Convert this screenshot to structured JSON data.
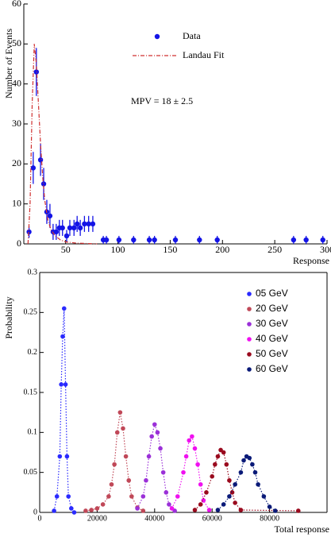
{
  "chart_data": [
    {
      "type": "scatter",
      "xlabel": "Response",
      "ylabel": "Number of Events",
      "xlim": [
        10,
        300
      ],
      "ylim": [
        0,
        60
      ],
      "xticks": [
        50,
        100,
        150,
        200,
        250,
        300
      ],
      "yticks": [
        0,
        10,
        20,
        30,
        40,
        50,
        60
      ],
      "legend": "upper right",
      "annotations": [
        "MPV   =   18 ± 2.5"
      ],
      "series": [
        {
          "name": "Data",
          "color": "#1414e6",
          "marker": "circle",
          "x": [
            15,
            19,
            22,
            26,
            29,
            32,
            35,
            38,
            41,
            44,
            47,
            51,
            54,
            58,
            61,
            64,
            68,
            72,
            76,
            86,
            89,
            101,
            115,
            130,
            135,
            155,
            178,
            195,
            268,
            280,
            296
          ],
          "values": [
            3,
            19,
            43,
            21,
            15,
            8,
            7,
            3,
            3,
            4,
            4,
            2,
            4,
            4,
            5,
            4,
            5,
            5,
            5,
            1,
            1,
            1,
            1,
            1,
            1,
            1,
            1,
            1,
            1,
            1,
            1
          ],
          "errors": [
            1.5,
            4,
            6,
            4,
            4,
            3,
            3,
            2,
            2,
            2,
            2,
            1.5,
            2,
            2,
            2,
            2,
            2,
            2,
            2,
            1,
            1,
            1,
            1,
            1,
            1,
            1,
            1,
            1,
            1,
            1,
            1
          ]
        },
        {
          "name": "Landau Fit",
          "color": "#d03030",
          "linestyle": "dashdot",
          "x": [
            14,
            16,
            18,
            20,
            22,
            24,
            26,
            28,
            30,
            33,
            36,
            40,
            45,
            50,
            60,
            80
          ],
          "values": [
            0,
            10,
            35,
            50,
            45,
            35,
            25,
            17,
            11,
            6,
            3.5,
            2,
            1,
            0.5,
            0.2,
            0
          ]
        }
      ]
    },
    {
      "type": "scatter",
      "xlabel": "Total response",
      "ylabel": "Probability",
      "xlim": [
        0,
        100000
      ],
      "ylim": [
        0,
        0.3
      ],
      "xticks": [
        0,
        20000,
        40000,
        60000,
        80000
      ],
      "yticks": [
        0,
        0.05,
        0.1,
        0.15,
        0.2,
        0.25,
        0.3
      ],
      "legend": "upper right",
      "series": [
        {
          "name": "05 GeV",
          "color": "#2a2aff",
          "marker": "circle",
          "linestyle": "dotted",
          "x": [
            5000,
            6000,
            7000,
            7500,
            8000,
            8500,
            9000,
            9500,
            10000,
            11000,
            12000
          ],
          "values": [
            0.002,
            0.02,
            0.07,
            0.16,
            0.22,
            0.255,
            0.16,
            0.07,
            0.02,
            0.005,
            0
          ]
        },
        {
          "name": "20 GeV",
          "color": "#c04858",
          "marker": "circle",
          "linestyle": "dotted",
          "x": [
            16000,
            18000,
            20000,
            22000,
            24000,
            25000,
            26000,
            27000,
            28000,
            29000,
            30000,
            31000,
            32000,
            34000,
            36000
          ],
          "values": [
            0.002,
            0.003,
            0.005,
            0.01,
            0.02,
            0.035,
            0.06,
            0.1,
            0.125,
            0.105,
            0.07,
            0.04,
            0.02,
            0.006,
            0.002
          ]
        },
        {
          "name": "30 GeV",
          "color": "#9b30d8",
          "marker": "circle",
          "linestyle": "dotted",
          "x": [
            34000,
            36000,
            37000,
            38000,
            39000,
            40000,
            41000,
            42000,
            43000,
            44000,
            45000,
            47000
          ],
          "values": [
            0.005,
            0.02,
            0.04,
            0.07,
            0.095,
            0.11,
            0.1,
            0.08,
            0.05,
            0.025,
            0.01,
            0.002
          ]
        },
        {
          "name": "40 GeV",
          "color": "#f010f0",
          "marker": "circle",
          "linestyle": "dotted",
          "x": [
            46000,
            48000,
            50000,
            51000,
            52000,
            53000,
            54000,
            55000,
            56000,
            57000,
            59000
          ],
          "values": [
            0.005,
            0.02,
            0.05,
            0.07,
            0.09,
            0.095,
            0.08,
            0.06,
            0.035,
            0.015,
            0.003
          ]
        },
        {
          "name": "50 GeV",
          "color": "#9a0a1e",
          "marker": "circle",
          "linestyle": "dotted",
          "x": [
            54000,
            56000,
            58000,
            60000,
            61000,
            62000,
            63000,
            64000,
            65000,
            66000,
            67000,
            68000,
            70000,
            90000
          ],
          "values": [
            0.003,
            0.01,
            0.025,
            0.045,
            0.06,
            0.07,
            0.078,
            0.075,
            0.06,
            0.04,
            0.025,
            0.012,
            0.003,
            0.002
          ]
        },
        {
          "name": "60 GeV",
          "color": "#0a1a78",
          "marker": "circle",
          "linestyle": "dotted",
          "x": [
            62000,
            64000,
            66000,
            68000,
            70000,
            71000,
            72000,
            73000,
            74000,
            75000,
            76000,
            78000,
            80000,
            82000
          ],
          "values": [
            0.003,
            0.01,
            0.02,
            0.035,
            0.05,
            0.065,
            0.07,
            0.068,
            0.06,
            0.05,
            0.035,
            0.02,
            0.007,
            0.002
          ]
        }
      ]
    }
  ]
}
